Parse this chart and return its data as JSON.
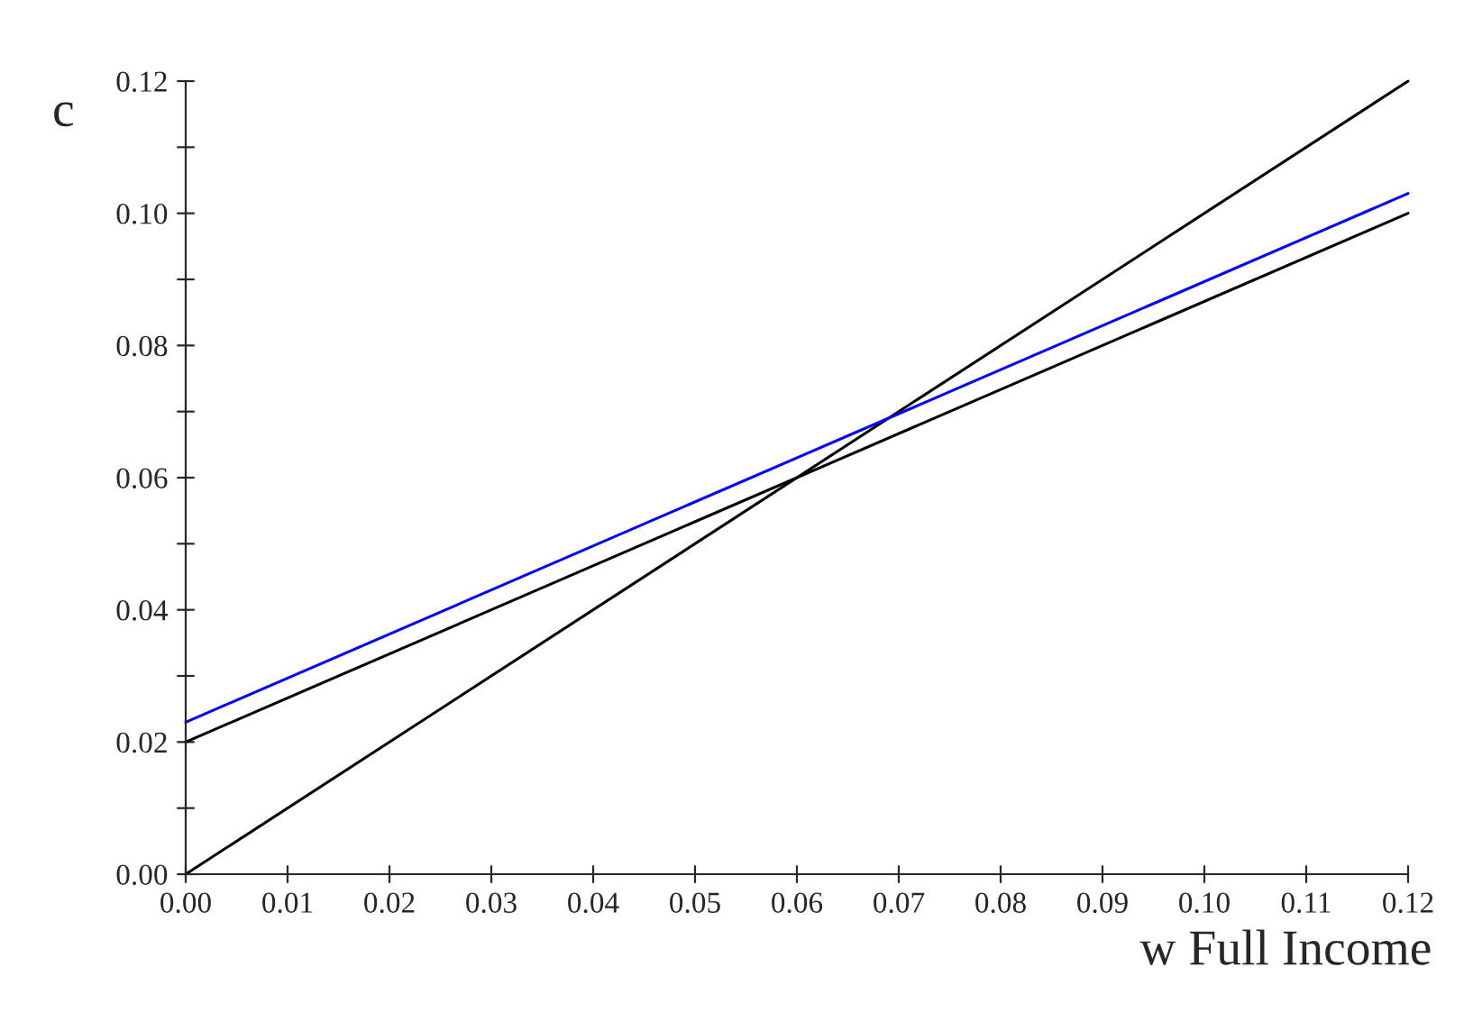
{
  "chart_data": {
    "type": "line",
    "xlabel": "w Full Income",
    "ylabel": "c",
    "x": [
      0,
      0.12
    ],
    "series": [
      {
        "color": "#000000",
        "values": [
          0,
          0.12
        ]
      },
      {
        "color": "#000000",
        "values": [
          0.02,
          0.1
        ]
      },
      {
        "color": "#0000ff",
        "values": [
          0.023,
          0.103
        ]
      }
    ],
    "xlim": [
      0,
      0.12
    ],
    "ylim": [
      0,
      0.12
    ],
    "xticks": [
      {
        "value": 0,
        "label": "0.00"
      },
      0.01,
      0.02,
      0.03,
      0.04,
      0.05,
      0.06,
      0.07,
      0.08,
      0.09,
      {
        "value": 0.1,
        "label": "0.10"
      },
      0.11,
      0.12
    ],
    "yticks": [
      {
        "value": 0,
        "label": "0.00"
      },
      {
        "value": 0.01,
        "label": null
      },
      0.02,
      {
        "value": 0.03,
        "label": null
      },
      0.04,
      {
        "value": 0.05,
        "label": null
      },
      0.06,
      {
        "value": 0.07,
        "label": null
      },
      0.08,
      {
        "value": 0.09,
        "label": null
      },
      {
        "value": 0.1,
        "label": "0.10"
      },
      {
        "value": 0.11,
        "label": null
      },
      0.12
    ],
    "grid": false,
    "legend": false,
    "marker": "none",
    "line_style": "solid"
  }
}
